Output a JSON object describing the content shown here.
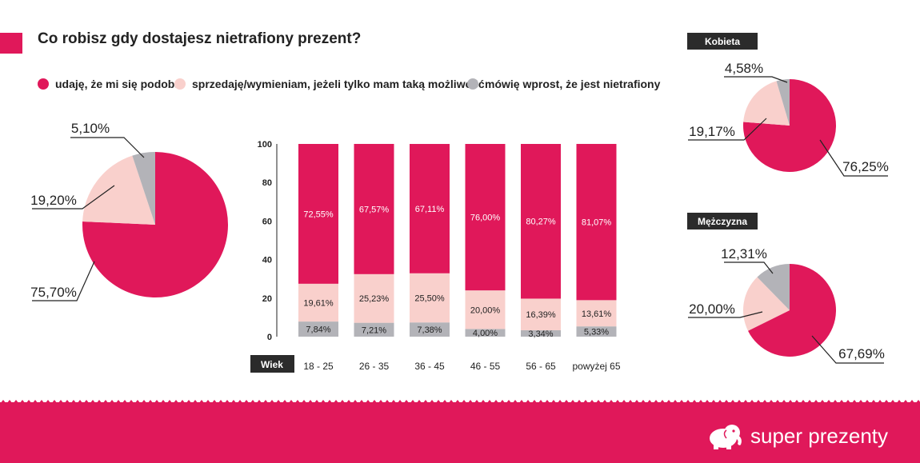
{
  "title": "Co robisz gdy dostajesz nietrafiony prezent?",
  "legend": [
    {
      "label": "udaję, że mi się podoba",
      "color": "#e0185a"
    },
    {
      "label": "sprzedaję/wymieniam, jeżeli tylko mam taką możliwość",
      "color": "#f9d0cc"
    },
    {
      "label": "mówię wprost, że jest nietrafiony",
      "color": "#b3b3b8"
    }
  ],
  "brand": {
    "name": "super prezenty",
    "icon": "elephant-icon"
  },
  "colors": {
    "accent": "#e0185a",
    "light": "#f9d0cc",
    "grey": "#b3b3b8",
    "dark": "#2b2b2b"
  },
  "chart_data": [
    {
      "type": "pie",
      "title": "",
      "labels": [
        "udaję, że mi się podoba",
        "sprzedaję/wymieniam, jeżeli tylko mam taką możliwość",
        "mówię wprost, że jest nietrafiony"
      ],
      "values": [
        75.7,
        19.2,
        5.1
      ],
      "value_labels": [
        "75,70%",
        "19,20%",
        "5,10%"
      ]
    },
    {
      "type": "bar",
      "stacked": true,
      "title": "",
      "x_axis_label": "Wiek",
      "categories": [
        "18 - 25",
        "26 - 35",
        "36 - 45",
        "46 - 55",
        "56 - 65",
        "powyżej 65"
      ],
      "ylim": [
        0,
        100
      ],
      "yticks": [
        0,
        20,
        40,
        60,
        80,
        100
      ],
      "grid": false,
      "series": [
        {
          "name": "mówię wprost, że jest nietrafiony",
          "values": [
            7.84,
            7.21,
            7.38,
            4.0,
            3.34,
            5.33
          ],
          "labels": [
            "7,84%",
            "7,21%",
            "7,38%",
            "4,00%",
            "3,34%",
            "5,33%"
          ]
        },
        {
          "name": "sprzedaję/wymieniam, jeżeli tylko mam taką możliwość",
          "values": [
            19.61,
            25.23,
            25.5,
            20.0,
            16.39,
            13.61
          ],
          "labels": [
            "19,61%",
            "25,23%",
            "25,50%",
            "20,00%",
            "16,39%",
            "13,61%"
          ]
        },
        {
          "name": "udaję, że mi się podoba",
          "values": [
            72.55,
            67.57,
            67.11,
            76.0,
            80.27,
            81.07
          ],
          "labels": [
            "72,55%",
            "67,57%",
            "67,11%",
            "76,00%",
            "80,27%",
            "81,07%"
          ]
        }
      ]
    },
    {
      "type": "pie",
      "title": "Kobieta",
      "values": [
        76.25,
        19.17,
        4.58
      ],
      "value_labels": [
        "76,25%",
        "19,17%",
        "4,58%"
      ]
    },
    {
      "type": "pie",
      "title": "Mężczyzna",
      "values": [
        67.69,
        20.0,
        12.31
      ],
      "value_labels": [
        "67,69%",
        "20,00%",
        "12,31%"
      ]
    }
  ]
}
